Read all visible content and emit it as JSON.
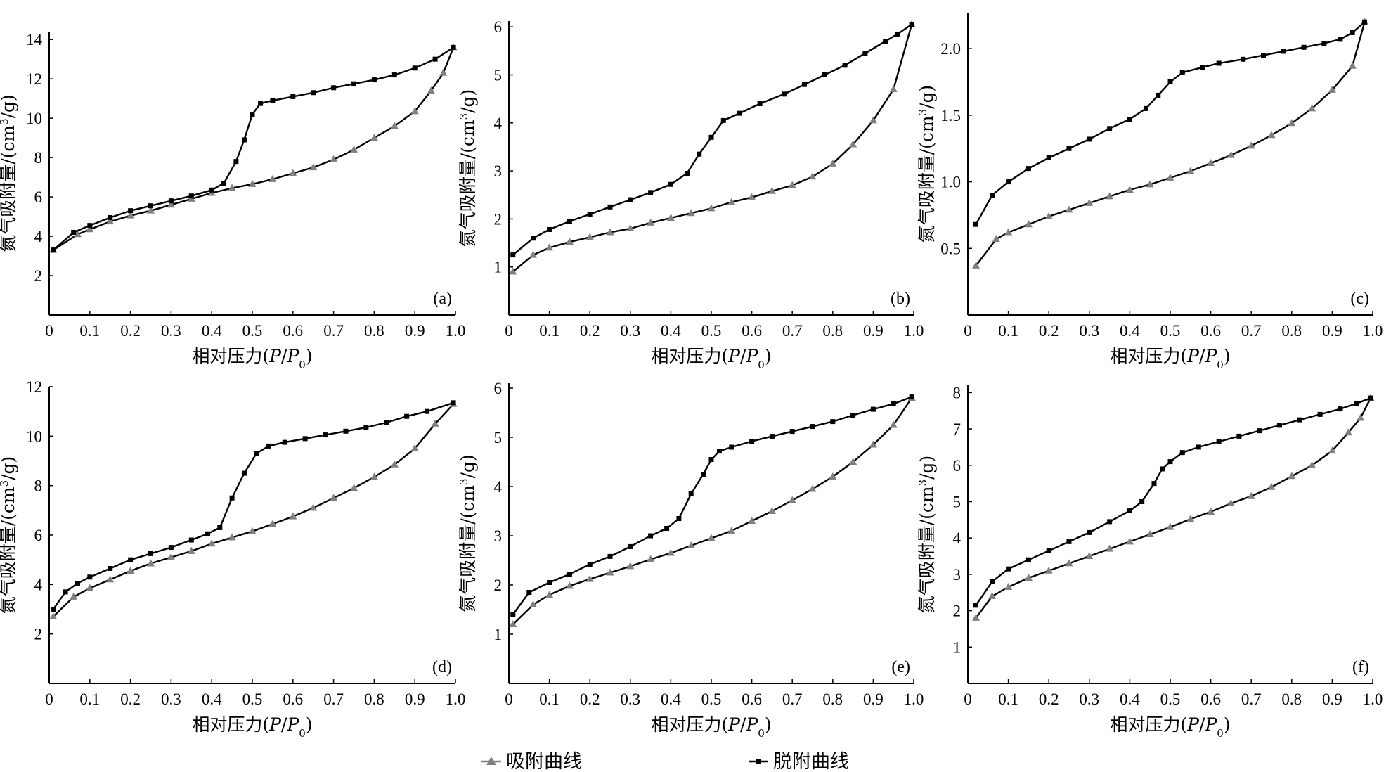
{
  "legend": {
    "adsorption_label": "吸附曲线",
    "desorption_label": "脱附曲线"
  },
  "colors": {
    "adsorption": "#808080",
    "desorption": "#000000"
  },
  "chart_data": [
    {
      "type": "line",
      "panel_label": "(a)",
      "xlabel": "相对压力(P/P0)",
      "ylabel": "氮气吸附量/(cm3/g)",
      "xlim": [
        0,
        1.0
      ],
      "ylim": [
        0,
        14
      ],
      "xticks": [
        "0",
        "0.1",
        "0.2",
        "0.3",
        "0.4",
        "0.5",
        "0.6",
        "0.7",
        "0.8",
        "0.9",
        "1.0"
      ],
      "yticks": [
        2,
        4,
        6,
        8,
        10,
        12,
        14
      ],
      "series": [
        {
          "name": "吸附曲线",
          "marker": "triangle",
          "x": [
            0.01,
            0.07,
            0.1,
            0.15,
            0.2,
            0.25,
            0.3,
            0.35,
            0.4,
            0.45,
            0.5,
            0.55,
            0.6,
            0.65,
            0.7,
            0.75,
            0.8,
            0.85,
            0.9,
            0.94,
            0.97,
            0.995
          ],
          "y": [
            3.3,
            4.1,
            4.35,
            4.75,
            5.05,
            5.3,
            5.6,
            5.9,
            6.2,
            6.45,
            6.65,
            6.9,
            7.2,
            7.5,
            7.9,
            8.4,
            9.0,
            9.6,
            10.35,
            11.4,
            12.3,
            13.6
          ]
        },
        {
          "name": "脱附曲线",
          "marker": "square",
          "x": [
            0.01,
            0.06,
            0.1,
            0.15,
            0.2,
            0.25,
            0.3,
            0.35,
            0.4,
            0.43,
            0.46,
            0.48,
            0.5,
            0.52,
            0.55,
            0.6,
            0.65,
            0.7,
            0.75,
            0.8,
            0.85,
            0.9,
            0.95,
            0.995
          ],
          "y": [
            3.3,
            4.2,
            4.55,
            4.95,
            5.3,
            5.55,
            5.8,
            6.05,
            6.35,
            6.7,
            7.8,
            8.9,
            10.2,
            10.75,
            10.9,
            11.1,
            11.3,
            11.55,
            11.75,
            11.95,
            12.2,
            12.55,
            13.0,
            13.6
          ]
        }
      ]
    },
    {
      "type": "line",
      "panel_label": "(b)",
      "xlabel": "相对压力(P/P0)",
      "ylabel": "氮气吸附量/(cm3/g)",
      "xlim": [
        0,
        1.0
      ],
      "ylim": [
        0,
        6
      ],
      "xticks": [
        "0",
        "0.1",
        "0.2",
        "0.3",
        "0.4",
        "0.5",
        "0.6",
        "0.7",
        "0.8",
        "0.9",
        "1.0"
      ],
      "yticks": [
        1,
        2,
        3,
        4,
        5,
        6
      ],
      "series": [
        {
          "name": "吸附曲线",
          "marker": "triangle",
          "x": [
            0.01,
            0.06,
            0.1,
            0.15,
            0.2,
            0.25,
            0.3,
            0.35,
            0.4,
            0.45,
            0.5,
            0.55,
            0.6,
            0.65,
            0.7,
            0.75,
            0.8,
            0.85,
            0.9,
            0.95,
            0.995
          ],
          "y": [
            0.9,
            1.25,
            1.4,
            1.52,
            1.62,
            1.72,
            1.8,
            1.92,
            2.02,
            2.12,
            2.22,
            2.35,
            2.45,
            2.58,
            2.7,
            2.88,
            3.15,
            3.55,
            4.05,
            4.7,
            6.05
          ]
        },
        {
          "name": "脱附曲线",
          "marker": "square",
          "x": [
            0.01,
            0.06,
            0.1,
            0.15,
            0.2,
            0.25,
            0.3,
            0.35,
            0.4,
            0.44,
            0.47,
            0.5,
            0.53,
            0.57,
            0.62,
            0.68,
            0.73,
            0.78,
            0.83,
            0.88,
            0.93,
            0.96,
            0.995
          ],
          "y": [
            1.25,
            1.6,
            1.78,
            1.95,
            2.1,
            2.25,
            2.4,
            2.55,
            2.72,
            2.95,
            3.35,
            3.7,
            4.05,
            4.2,
            4.4,
            4.6,
            4.8,
            5.0,
            5.2,
            5.45,
            5.7,
            5.85,
            6.05
          ]
        }
      ]
    },
    {
      "type": "line",
      "panel_label": "(c)",
      "xlabel": "相对压力(P/P0)",
      "ylabel": "氮气吸附量/(cm3/g)",
      "xlim": [
        0,
        1.0
      ],
      "ylim": [
        0,
        2.2
      ],
      "xticks": [
        "0",
        "0.1",
        "0.2",
        "0.3",
        "0.4",
        "0.5",
        "0.6",
        "0.7",
        "0.8",
        "0.9",
        "1.0"
      ],
      "yticks": [
        0.5,
        1.0,
        1.5,
        2.0
      ],
      "ytick_labels": [
        "0.5",
        "1.0",
        "1.5",
        "2.0"
      ],
      "series": [
        {
          "name": "吸附曲线",
          "marker": "triangle",
          "x": [
            0.02,
            0.07,
            0.1,
            0.15,
            0.2,
            0.25,
            0.3,
            0.35,
            0.4,
            0.45,
            0.5,
            0.55,
            0.6,
            0.65,
            0.7,
            0.75,
            0.8,
            0.85,
            0.9,
            0.95,
            0.98
          ],
          "y": [
            0.37,
            0.57,
            0.62,
            0.68,
            0.74,
            0.79,
            0.84,
            0.89,
            0.94,
            0.98,
            1.03,
            1.08,
            1.14,
            1.2,
            1.27,
            1.35,
            1.44,
            1.55,
            1.69,
            1.87,
            2.2
          ]
        },
        {
          "name": "脱附曲线",
          "marker": "square",
          "x": [
            0.02,
            0.06,
            0.1,
            0.15,
            0.2,
            0.25,
            0.3,
            0.35,
            0.4,
            0.44,
            0.47,
            0.5,
            0.53,
            0.58,
            0.62,
            0.68,
            0.73,
            0.78,
            0.83,
            0.88,
            0.92,
            0.95,
            0.98
          ],
          "y": [
            0.68,
            0.9,
            1.0,
            1.1,
            1.18,
            1.25,
            1.32,
            1.4,
            1.47,
            1.55,
            1.65,
            1.75,
            1.82,
            1.86,
            1.89,
            1.92,
            1.95,
            1.98,
            2.01,
            2.04,
            2.07,
            2.12,
            2.2
          ]
        }
      ]
    },
    {
      "type": "line",
      "panel_label": "(d)",
      "xlabel": "相对压力(P/P0)",
      "ylabel": "氮气吸附量/(cm3/g)",
      "xlim": [
        0,
        1.0
      ],
      "ylim": [
        0,
        12
      ],
      "xticks": [
        "0",
        "0.1",
        "0.2",
        "0.3",
        "0.4",
        "0.5",
        "0.6",
        "0.7",
        "0.8",
        "0.9",
        "1.0"
      ],
      "yticks": [
        2,
        4,
        6,
        8,
        10,
        12
      ],
      "series": [
        {
          "name": "吸附曲线",
          "marker": "triangle",
          "x": [
            0.01,
            0.06,
            0.1,
            0.15,
            0.2,
            0.25,
            0.3,
            0.35,
            0.4,
            0.45,
            0.5,
            0.55,
            0.6,
            0.65,
            0.7,
            0.75,
            0.8,
            0.85,
            0.9,
            0.95,
            0.995
          ],
          "y": [
            2.7,
            3.5,
            3.85,
            4.2,
            4.55,
            4.85,
            5.1,
            5.35,
            5.65,
            5.9,
            6.15,
            6.45,
            6.75,
            7.1,
            7.5,
            7.9,
            8.35,
            8.85,
            9.5,
            10.5,
            11.3
          ]
        },
        {
          "name": "脱附曲线",
          "marker": "square",
          "x": [
            0.01,
            0.04,
            0.07,
            0.1,
            0.15,
            0.2,
            0.25,
            0.3,
            0.35,
            0.39,
            0.42,
            0.45,
            0.48,
            0.51,
            0.54,
            0.58,
            0.63,
            0.68,
            0.73,
            0.78,
            0.83,
            0.88,
            0.93,
            0.995
          ],
          "y": [
            3.0,
            3.7,
            4.05,
            4.3,
            4.65,
            5.0,
            5.25,
            5.5,
            5.8,
            6.05,
            6.3,
            7.5,
            8.5,
            9.3,
            9.6,
            9.75,
            9.9,
            10.05,
            10.2,
            10.35,
            10.55,
            10.8,
            11.0,
            11.35
          ]
        }
      ]
    },
    {
      "type": "line",
      "panel_label": "(e)",
      "xlabel": "相对压力(P/P0)",
      "ylabel": "氮气吸附量/(cm3/g)",
      "xlim": [
        0,
        1.0
      ],
      "ylim": [
        0,
        6
      ],
      "xticks": [
        "0",
        "0.1",
        "0.2",
        "0.3",
        "0.4",
        "0.5",
        "0.6",
        "0.7",
        "0.8",
        "0.9",
        "1.0"
      ],
      "yticks": [
        1,
        2,
        3,
        4,
        5,
        6
      ],
      "series": [
        {
          "name": "吸附曲线",
          "marker": "triangle",
          "x": [
            0.01,
            0.06,
            0.1,
            0.15,
            0.2,
            0.25,
            0.3,
            0.35,
            0.4,
            0.45,
            0.5,
            0.55,
            0.6,
            0.65,
            0.7,
            0.75,
            0.8,
            0.85,
            0.9,
            0.95,
            0.995
          ],
          "y": [
            1.2,
            1.6,
            1.8,
            1.98,
            2.12,
            2.25,
            2.38,
            2.52,
            2.65,
            2.8,
            2.95,
            3.1,
            3.3,
            3.5,
            3.72,
            3.95,
            4.2,
            4.5,
            4.85,
            5.25,
            5.8
          ]
        },
        {
          "name": "脱附曲线",
          "marker": "square",
          "x": [
            0.01,
            0.05,
            0.1,
            0.15,
            0.2,
            0.25,
            0.3,
            0.35,
            0.39,
            0.42,
            0.45,
            0.48,
            0.5,
            0.52,
            0.55,
            0.6,
            0.65,
            0.7,
            0.75,
            0.8,
            0.85,
            0.9,
            0.95,
            0.995
          ],
          "y": [
            1.4,
            1.85,
            2.05,
            2.22,
            2.42,
            2.58,
            2.78,
            3.0,
            3.15,
            3.35,
            3.85,
            4.25,
            4.55,
            4.72,
            4.8,
            4.92,
            5.02,
            5.12,
            5.22,
            5.32,
            5.45,
            5.57,
            5.68,
            5.82
          ]
        }
      ]
    },
    {
      "type": "line",
      "panel_label": "(f)",
      "xlabel": "相对压力(P/P0)",
      "ylabel": "氮气吸附量/(cm3/g)",
      "xlim": [
        0,
        1.0
      ],
      "ylim": [
        0,
        8
      ],
      "xticks": [
        "0",
        "0.1",
        "0.2",
        "0.3",
        "0.4",
        "0.5",
        "0.6",
        "0.7",
        "0.8",
        "0.9",
        "1.0"
      ],
      "yticks": [
        1,
        2,
        3,
        4,
        5,
        6,
        7,
        8
      ],
      "series": [
        {
          "name": "吸附曲线",
          "marker": "triangle",
          "x": [
            0.02,
            0.06,
            0.1,
            0.15,
            0.2,
            0.25,
            0.3,
            0.35,
            0.4,
            0.45,
            0.5,
            0.55,
            0.6,
            0.65,
            0.7,
            0.75,
            0.8,
            0.85,
            0.9,
            0.94,
            0.97,
            0.995
          ],
          "y": [
            1.8,
            2.4,
            2.65,
            2.9,
            3.1,
            3.3,
            3.5,
            3.7,
            3.9,
            4.1,
            4.3,
            4.52,
            4.72,
            4.95,
            5.15,
            5.4,
            5.7,
            6.0,
            6.4,
            6.9,
            7.3,
            7.85
          ]
        },
        {
          "name": "脱附曲线",
          "marker": "square",
          "x": [
            0.02,
            0.06,
            0.1,
            0.15,
            0.2,
            0.25,
            0.3,
            0.35,
            0.4,
            0.43,
            0.46,
            0.48,
            0.5,
            0.53,
            0.57,
            0.62,
            0.67,
            0.72,
            0.77,
            0.82,
            0.87,
            0.92,
            0.96,
            0.995
          ],
          "y": [
            2.15,
            2.8,
            3.15,
            3.4,
            3.65,
            3.9,
            4.15,
            4.45,
            4.75,
            5.0,
            5.5,
            5.9,
            6.1,
            6.35,
            6.5,
            6.65,
            6.8,
            6.95,
            7.1,
            7.25,
            7.4,
            7.55,
            7.7,
            7.85
          ]
        }
      ]
    }
  ]
}
